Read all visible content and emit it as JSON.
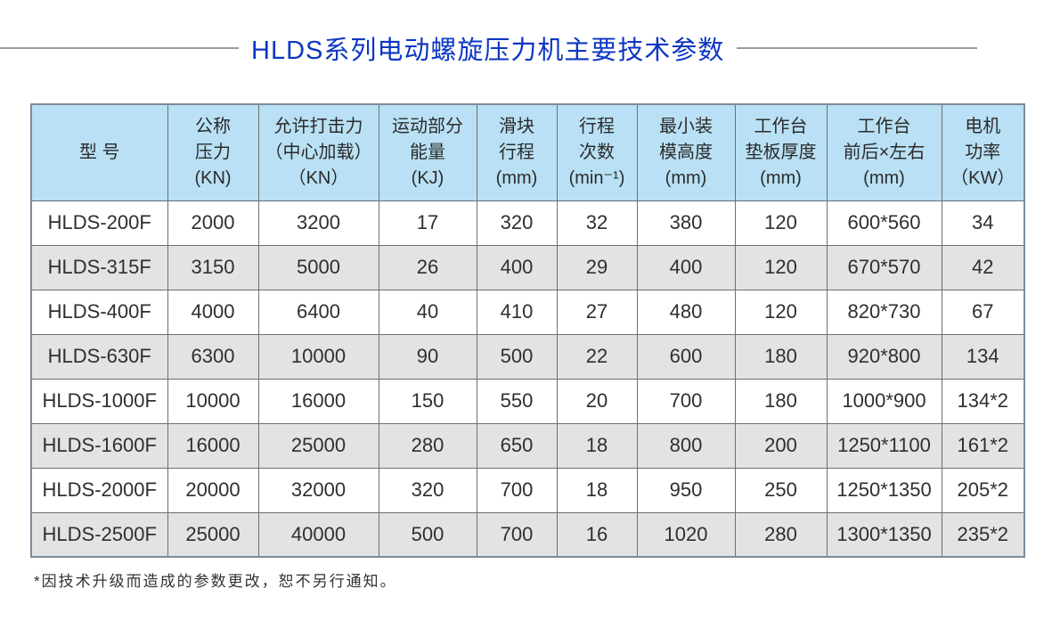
{
  "title": {
    "text": "HLDS系列电动螺旋压力机主要技术参数",
    "color": "#0d36c4"
  },
  "table": {
    "header_bg": "#b9e0f4",
    "alt_row_bg": "#e3e3e3",
    "columns": [
      {
        "id": "model",
        "lines": [
          "型 号"
        ]
      },
      {
        "id": "nominal-pressure",
        "lines": [
          "公称",
          "压力",
          "(KN)"
        ]
      },
      {
        "id": "allowable-striking-force",
        "lines": [
          "允许打击力",
          "（中心加载）",
          "（KN）"
        ]
      },
      {
        "id": "moving-parts-energy",
        "lines": [
          "运动部分",
          "能量",
          "(KJ)"
        ]
      },
      {
        "id": "slide-stroke",
        "lines": [
          "滑块",
          "行程",
          "(mm)"
        ]
      },
      {
        "id": "strokes-per-minute",
        "lines": [
          "行程",
          "次数",
          "(min⁻¹)"
        ]
      },
      {
        "id": "min-die-height",
        "lines": [
          "最小装",
          "模高度",
          "(mm)"
        ]
      },
      {
        "id": "bolster-thickness",
        "lines": [
          "工作台",
          "垫板厚度",
          "(mm)"
        ]
      },
      {
        "id": "worktable-size",
        "lines": [
          "工作台",
          "前后×左右",
          "(mm)"
        ]
      },
      {
        "id": "motor-power",
        "lines": [
          "电机",
          "功率",
          "（KW）"
        ]
      }
    ],
    "rows": [
      [
        "HLDS-200F",
        "2000",
        "3200",
        "17",
        "320",
        "32",
        "380",
        "120",
        "600*560",
        "34"
      ],
      [
        "HLDS-315F",
        "3150",
        "5000",
        "26",
        "400",
        "29",
        "400",
        "120",
        "670*570",
        "42"
      ],
      [
        "HLDS-400F",
        "4000",
        "6400",
        "40",
        "410",
        "27",
        "480",
        "120",
        "820*730",
        "67"
      ],
      [
        "HLDS-630F",
        "6300",
        "10000",
        "90",
        "500",
        "22",
        "600",
        "180",
        "920*800",
        "134"
      ],
      [
        "HLDS-1000F",
        "10000",
        "16000",
        "150",
        "550",
        "20",
        "700",
        "180",
        "1000*900",
        "134*2"
      ],
      [
        "HLDS-1600F",
        "16000",
        "25000",
        "280",
        "650",
        "18",
        "800",
        "200",
        "1250*1100",
        "161*2"
      ],
      [
        "HLDS-2000F",
        "20000",
        "32000",
        "320",
        "700",
        "18",
        "950",
        "250",
        "1250*1350",
        "205*2"
      ],
      [
        "HLDS-2500F",
        "25000",
        "40000",
        "500",
        "700",
        "16",
        "1020",
        "280",
        "1300*1350",
        "235*2"
      ]
    ]
  },
  "footnote": {
    "text": "*因技术升级而造成的参数更改，恕不另行通知。"
  }
}
